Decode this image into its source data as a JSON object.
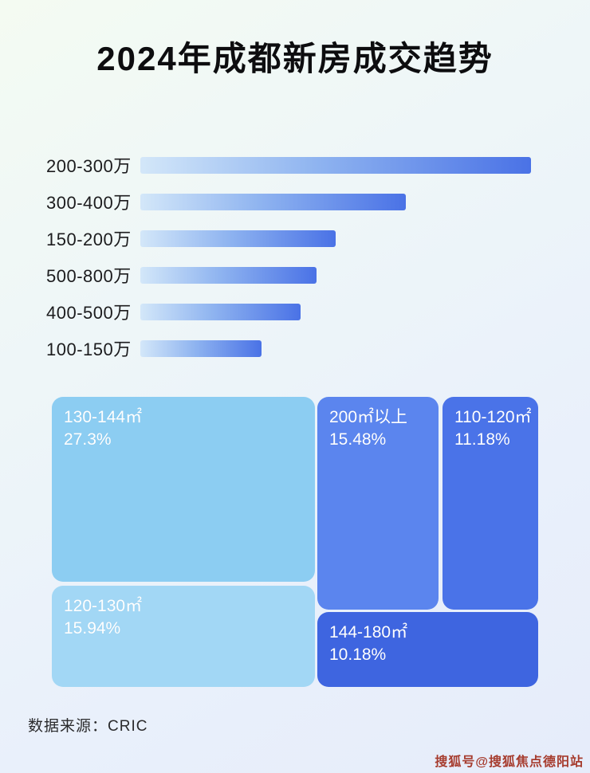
{
  "page": {
    "title": "2024年成都新房成交趋势",
    "source_note": "数据来源：CRIC",
    "watermark": "搜狐号@搜狐焦点德阳站"
  },
  "colors": {
    "bar_gradient_start": "#d3e7f9",
    "bar_gradient_end": "#4a72e6",
    "background_top_left": "#f4fbf2",
    "background_bottom_right": "#e6ecfa",
    "watermark_red": "#a63c2e"
  },
  "chart_data": [
    {
      "type": "bar",
      "orientation": "horizontal",
      "title": "2024年成都新房成交趋势",
      "categories": [
        "200-300万",
        "300-400万",
        "150-200万",
        "500-800万",
        "400-500万",
        "100-150万"
      ],
      "values": [
        100,
        68,
        50,
        45,
        41,
        31
      ],
      "values_note": "relative bar lengths as % of the longest bar; no numeric axis shown in image",
      "xlabel": "",
      "ylabel": "",
      "grid": false,
      "legend": "none"
    },
    {
      "type": "treemap",
      "items": [
        {
          "label": "130-144㎡",
          "value": 27.3,
          "pct_text": "27.3%",
          "color": "#8ccdf2"
        },
        {
          "label": "120-130㎡",
          "value": 15.94,
          "pct_text": "15.94%",
          "color": "#a2d7f5"
        },
        {
          "label": "200㎡以上",
          "value": 15.48,
          "pct_text": "15.48%",
          "color": "#5b85ee"
        },
        {
          "label": "110-120㎡",
          "value": 11.18,
          "pct_text": "11.18%",
          "color": "#4a73e8"
        },
        {
          "label": "144-180㎡",
          "value": 10.18,
          "pct_text": "10.18%",
          "color": "#3e65e0"
        }
      ]
    }
  ]
}
